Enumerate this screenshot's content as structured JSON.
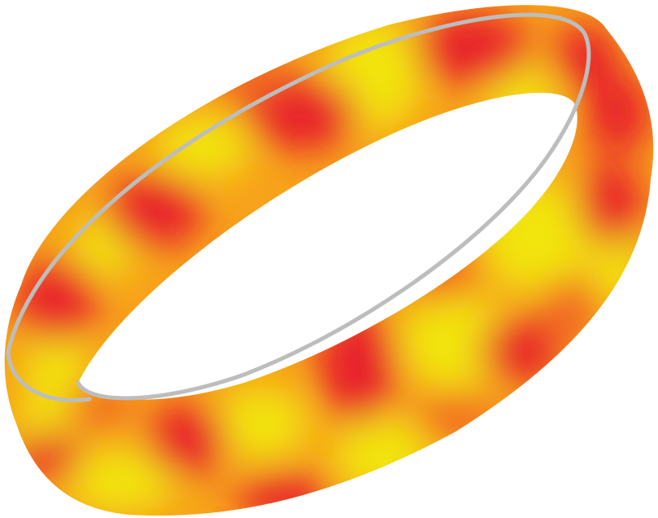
{
  "image": {
    "subject": "wristband-icon",
    "background_color": "#ffffff",
    "colors": {
      "red": "#e8242a",
      "orange": "#f26a21",
      "amber": "#f7a21b",
      "yellow": "#f2e40f",
      "rim": "#bdbdbd"
    }
  }
}
